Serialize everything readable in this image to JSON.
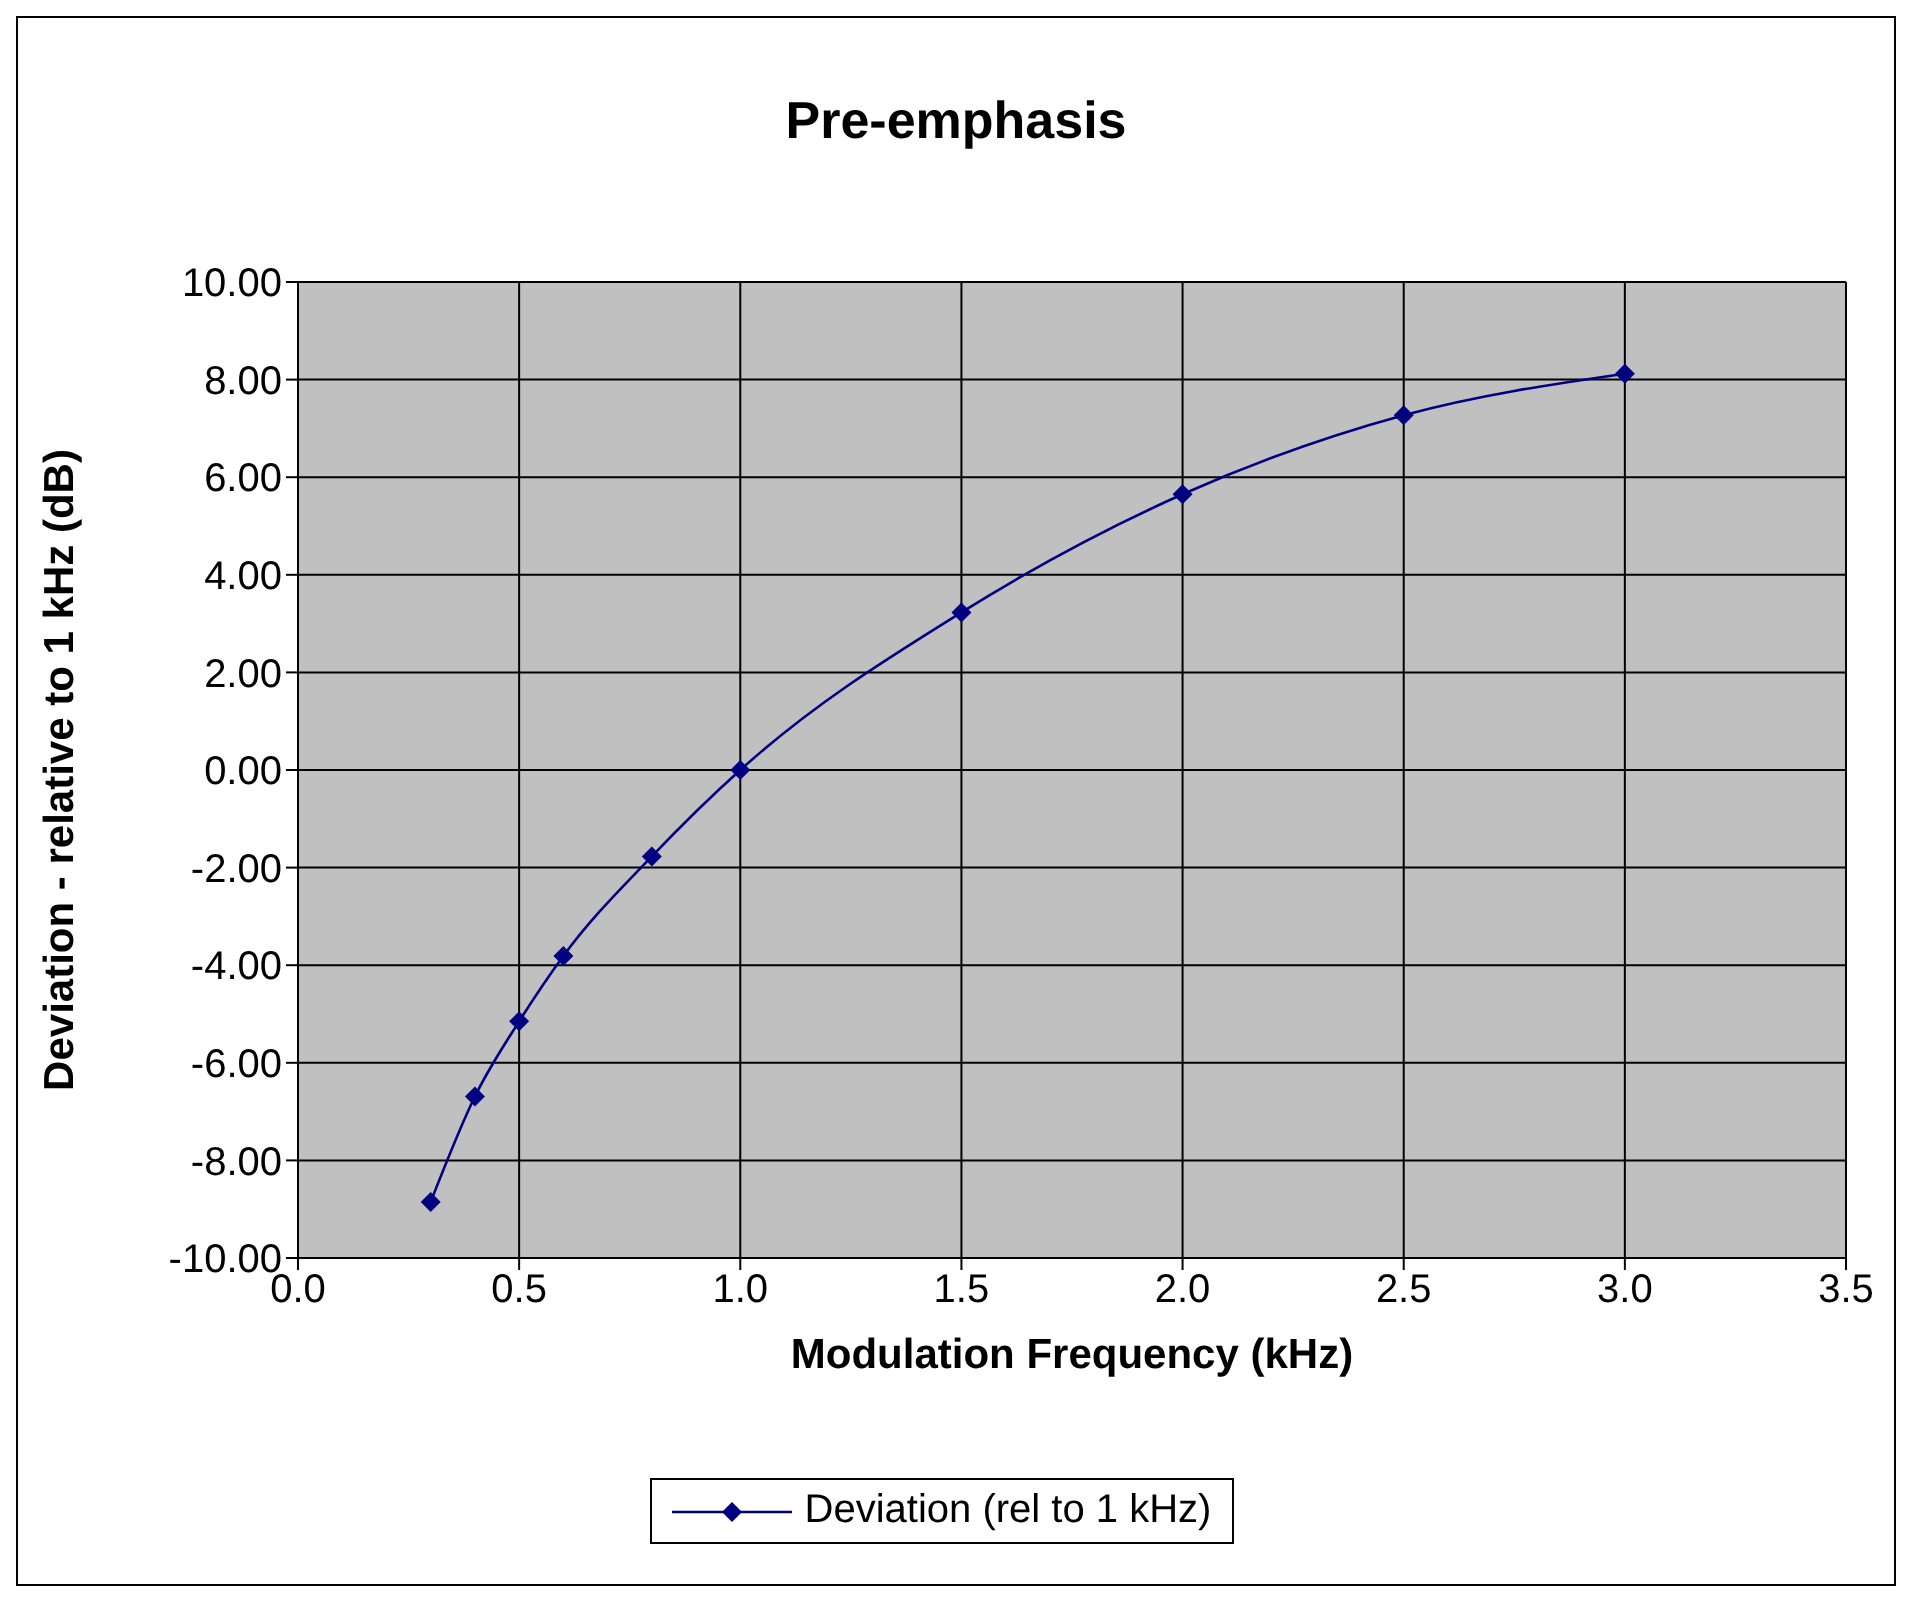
{
  "chart_data": {
    "type": "line",
    "title": "Pre-emphasis",
    "xlabel": "Modulation Frequency (kHz)",
    "ylabel": "Deviation - relative to 1 kHz (dB)",
    "x": [
      0.3,
      0.4,
      0.5,
      0.6,
      0.8,
      1.0,
      1.5,
      2.0,
      2.5,
      3.0
    ],
    "series": [
      {
        "name": "Deviation (rel to 1 kHz)",
        "color": "#000080",
        "values": [
          -8.85,
          -6.69,
          -5.15,
          -3.81,
          -1.77,
          0,
          3.23,
          5.65,
          7.27,
          8.12
        ]
      }
    ],
    "xlim": [
      0,
      3.5
    ],
    "xticks": [
      {
        "value": 0,
        "label": "0.0"
      },
      {
        "value": 0.5,
        "label": "0.5"
      },
      {
        "value": 1,
        "label": "1.0"
      },
      {
        "value": 1.5,
        "label": "1.5"
      },
      {
        "value": 2,
        "label": "2.0"
      },
      {
        "value": 2.5,
        "label": "2.5"
      },
      {
        "value": 3,
        "label": "3.0"
      },
      {
        "value": 3.5,
        "label": "3.5"
      }
    ],
    "ylim": [
      -10,
      10
    ],
    "yticks": [
      {
        "value": -10,
        "label": "-10.00"
      },
      {
        "value": -8,
        "label": "-8.00"
      },
      {
        "value": -6,
        "label": "-6.00"
      },
      {
        "value": -4,
        "label": "-4.00"
      },
      {
        "value": -2,
        "label": "-2.00"
      },
      {
        "value": 0,
        "label": "0.00"
      },
      {
        "value": 2,
        "label": "2.00"
      },
      {
        "value": 4,
        "label": "4.00"
      },
      {
        "value": 6,
        "label": "6.00"
      },
      {
        "value": 8,
        "label": "8.00"
      },
      {
        "value": 10,
        "label": "10.00"
      }
    ],
    "grid": true,
    "legend": "bottom",
    "marker": "diamond",
    "line_style": "solid"
  }
}
